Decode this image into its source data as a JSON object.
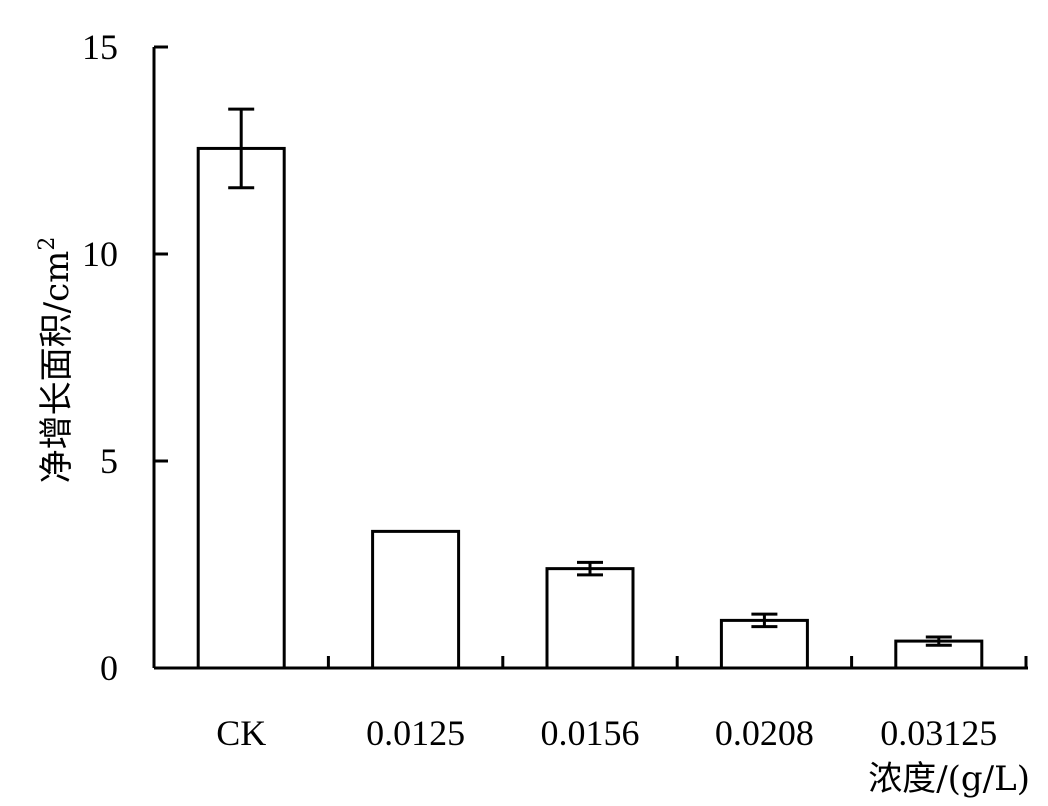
{
  "chart_data": {
    "type": "bar",
    "categories": [
      "CK",
      "0.0125",
      "0.0156",
      "0.0208",
      "0.03125"
    ],
    "values": [
      12.55,
      3.3,
      2.4,
      1.15,
      0.65
    ],
    "errors": [
      0.95,
      0.0,
      0.15,
      0.15,
      0.1
    ],
    "ylabel": "净增长面积/cm",
    "ylabel_sup": "2",
    "xlabel": "浓度/(g/L)",
    "ylim": [
      0,
      15
    ],
    "yticks": [
      0,
      5,
      10,
      15
    ],
    "grid": false,
    "bar_fill": "#ffffff",
    "bar_stroke": "#000000"
  }
}
